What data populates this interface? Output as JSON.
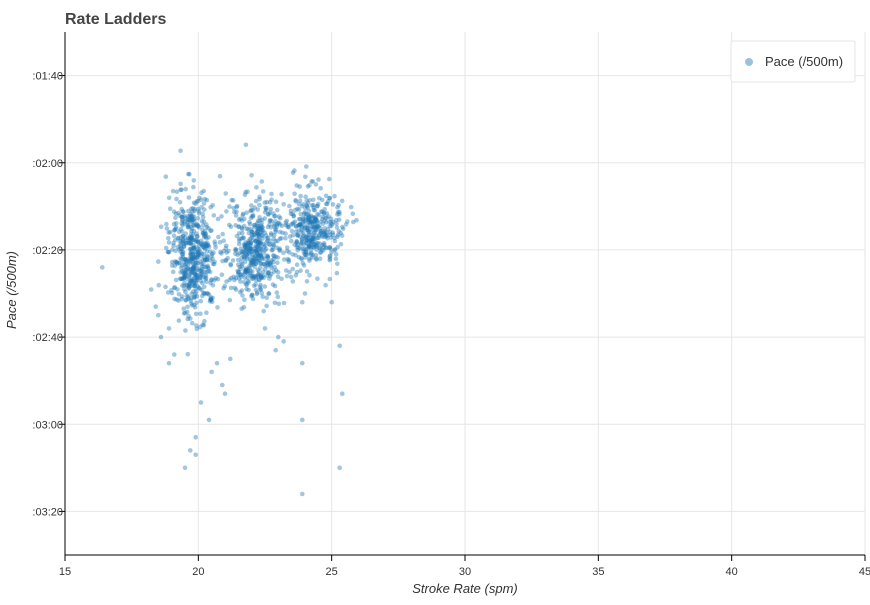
{
  "chart_data": {
    "type": "scatter",
    "title": "Rate Ladders",
    "xlabel": "Stroke Rate (spm)",
    "ylabel": "Pace (/500m)",
    "xlim": [
      15,
      45
    ],
    "ylim_seconds": [
      90,
      210
    ],
    "y_inverted": false,
    "x_ticks": [
      "15",
      "20",
      "25",
      "30",
      "35",
      "40",
      "45"
    ],
    "y_ticks": [
      {
        "label": ":01:40",
        "value": 100
      },
      {
        "label": ":02:00",
        "value": 120
      },
      {
        "label": ":02:20",
        "value": 140
      },
      {
        "label": ":02:40",
        "value": 160
      },
      {
        "label": ":03:00",
        "value": 180
      },
      {
        "label": ":03:20",
        "value": 200
      }
    ],
    "grid": true,
    "legend": {
      "position": "top-right",
      "entries": [
        "Pace (/500m)"
      ]
    },
    "series": [
      {
        "name": "Pace (/500m)",
        "color": "#1f77b4",
        "clusters": [
          {
            "x_center": 19.8,
            "x_spread": 0.45,
            "y_center": 141,
            "y_spread": 7,
            "count": 520
          },
          {
            "x_center": 22.1,
            "x_spread": 0.55,
            "y_center": 140,
            "y_spread": 6,
            "count": 480
          },
          {
            "x_center": 24.3,
            "x_spread": 0.55,
            "y_center": 135,
            "y_spread": 4.5,
            "count": 380
          }
        ],
        "points": [
          [
            16.4,
            144
          ],
          [
            19.5,
            190
          ],
          [
            19.7,
            186
          ],
          [
            19.9,
            183
          ],
          [
            19.9,
            187
          ],
          [
            20.1,
            175
          ],
          [
            20.4,
            179
          ],
          [
            20.9,
            171
          ],
          [
            21.0,
            173
          ],
          [
            20.5,
            168
          ],
          [
            20.7,
            166
          ],
          [
            21.2,
            165
          ],
          [
            23.9,
            179
          ],
          [
            23.9,
            196
          ],
          [
            25.3,
            190
          ],
          [
            25.4,
            173
          ],
          [
            25.3,
            162
          ],
          [
            23.9,
            166
          ],
          [
            25.0,
            152
          ],
          [
            24.0,
            150
          ],
          [
            23.9,
            152
          ],
          [
            23.2,
            161
          ],
          [
            22.9,
            163
          ],
          [
            23.0,
            160
          ],
          [
            22.5,
            158
          ],
          [
            18.9,
            166
          ],
          [
            19.1,
            164
          ],
          [
            18.6,
            160
          ],
          [
            18.9,
            158
          ],
          [
            18.5,
            155
          ],
          [
            18.4,
            153
          ]
        ]
      }
    ]
  }
}
